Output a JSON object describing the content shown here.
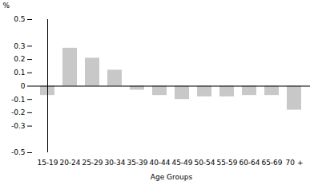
{
  "chart_data": {
    "type": "bar",
    "categories": [
      "15-19",
      "20-24",
      "25-29",
      "30-34",
      "35-39",
      "40-44",
      "45-49",
      "50-54",
      "55-59",
      "60-64",
      "65-69",
      "70 +"
    ],
    "values": [
      -0.07,
      0.285,
      0.21,
      0.12,
      -0.03,
      -0.07,
      -0.1,
      -0.08,
      -0.08,
      -0.07,
      -0.07,
      -0.18
    ],
    "color": "#c8c8c8",
    "ylim": [
      -0.5,
      0.5
    ],
    "yticks": [
      -0.5,
      -0.3,
      -0.2,
      -0.1,
      0,
      0.1,
      0.2,
      0.3,
      0.5
    ],
    "xlabel": "Age Groups",
    "ylabel": "%",
    "grid": false
  }
}
